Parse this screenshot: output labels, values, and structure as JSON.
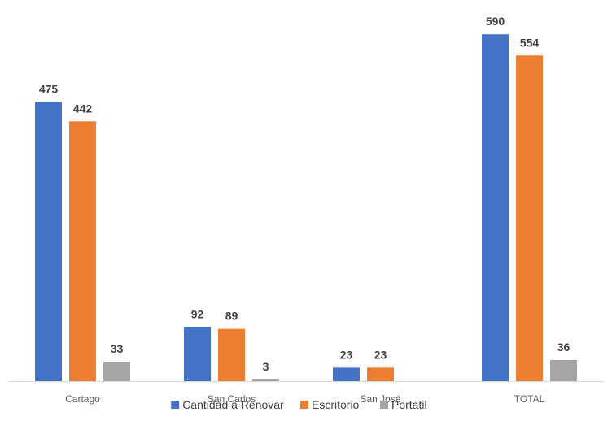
{
  "chart_data": {
    "type": "bar",
    "categories": [
      "Cartago",
      "San Carlos",
      "San José",
      "TOTAL"
    ],
    "series": [
      {
        "name": "Cantidad a Renovar",
        "values": [
          475,
          92,
          23,
          590
        ],
        "labels": [
          "475",
          "92",
          "23",
          "590"
        ],
        "color": "#4472C4"
      },
      {
        "name": "Escritorio",
        "values": [
          442,
          89,
          23,
          554
        ],
        "labels": [
          "442",
          "89",
          "23",
          "554"
        ],
        "color": "#ED7D31"
      },
      {
        "name": "Portatil",
        "values": [
          33,
          3,
          0,
          36
        ],
        "labels": [
          "33",
          "3",
          "",
          "36"
        ],
        "color": "#A5A5A5"
      }
    ],
    "title": "",
    "xlabel": "",
    "ylabel": "",
    "ylim": [
      0,
      600
    ],
    "grid": false,
    "legend": "bottom-center",
    "data_labels": true
  }
}
